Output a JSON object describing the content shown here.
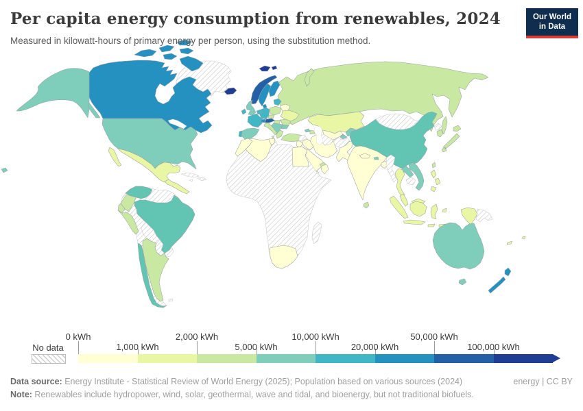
{
  "header": {
    "title": "Per capita energy consumption from renewables, 2024",
    "subtitle": "Measured in kilowatt-hours of primary energy per person, using the substitution method.",
    "logo_line1": "Our World",
    "logo_line2": "in Data",
    "logo_bg": "#0f2d4f",
    "logo_accent": "#d93c32"
  },
  "legend": {
    "no_data_label": "No data",
    "ticks": [
      {
        "label": "0 kWh",
        "row": "top"
      },
      {
        "label": "1,000 kWh",
        "row": "bottom"
      },
      {
        "label": "2,000 kWh",
        "row": "top"
      },
      {
        "label": "5,000 kWh",
        "row": "bottom"
      },
      {
        "label": "10,000 kWh",
        "row": "top"
      },
      {
        "label": "20,000 kWh",
        "row": "bottom"
      },
      {
        "label": "50,000 kWh",
        "row": "top"
      },
      {
        "label": "100,000 kWh",
        "row": "bottom"
      }
    ],
    "colors": [
      "#ffffd3",
      "#e9f6a4",
      "#c9e9a3",
      "#7fcdbb",
      "#41b6c4",
      "#2491c1",
      "#2360a5",
      "#203d94"
    ]
  },
  "footer": {
    "source_label": "Data source:",
    "source_text": " Energy Institute - Statistical Review of World Energy (2025); Population based on various sources (2024)",
    "license": "energy | CC BY",
    "note_label": "Note:",
    "note_text": " Renewables include hydropower, wind, solar, geothermal, wave and tidal, and bioenergy, but not traditional biofuels."
  },
  "map": {
    "no_data_key": "no-data",
    "country_colors": {
      "greenland": "no-data",
      "canada": "#2491c1",
      "canada-islands": "#2491c1",
      "alaska": "#7fcdbb",
      "alaska-panhandle": "#7fcdbb",
      "usa": "#7fcdbb",
      "hawaii": "#7fcdbb",
      "mexico": "#e9f6a4",
      "baja": "#e9f6a4",
      "central-america": "#e9f6a4",
      "cuba": "no-data",
      "hispaniola": "no-data",
      "jamaica": "no-data",
      "south-america-base": "no-data",
      "venezuela": "#62c4b2",
      "colombia": "#c9e9a3",
      "ecuador": "#c9e9a3",
      "peru": "#c9e9a3",
      "brazil": "#62c4b2",
      "bolivia": "no-data",
      "paraguay": "no-data",
      "uruguay": "no-data",
      "chile": "#62c4b2",
      "argentina": "#c9e9a3",
      "falklands": "no-data",
      "russia": "#c9e9a3",
      "novaya-zemlya": "#c9e9a3",
      "sakhalin": "#c9e9a3",
      "svalbard": "#203d94",
      "iceland": "#203d94",
      "norway": "#2360a5",
      "sweden": "#2491c1",
      "finland": "#2491c1",
      "denmark": "#2491c1",
      "baltics": "#41b6c4",
      "belarus": "#ffffd3",
      "poland": "#c9e9a3",
      "germany": "#41b6c4",
      "netherlands-belgium": "#41b6c4",
      "france": "#41b6c4",
      "uk": "#7fcdbb",
      "ireland": "#41b6c4",
      "switzerland": "#2491c1",
      "austria": "#2360a5",
      "czechia": "#c9e9a3",
      "hungary": "#c9e9a3",
      "ukraine": "#e9f6a4",
      "romania": "#c9e9a3",
      "balkans": "#7fcdbb",
      "bulgaria": "#7fcdbb",
      "greece": "#c9e9a3",
      "italy": "#c9e9a3",
      "sicily": "#c9e9a3",
      "spain": "#7fcdbb",
      "portugal": "#41b6c4",
      "turkey": "#c9e9a3",
      "georgia": "#7fcdbb",
      "azerbaijan": "#c9e9a3",
      "syria": "no-data",
      "iraq": "#ffffd3",
      "iran": "#ffffd3",
      "jordan-israel": "#ffffd3",
      "saudi-arabia": "#ffffd3",
      "yemen": "#ffffd3",
      "oman": "#ffffd3",
      "uae": "#c9e9a3",
      "kazakhstan": "#e9f6a4",
      "uzbekistan": "#ffffd3",
      "turkmenistan": "no-data",
      "kyrgyzstan": "#7fcdbb",
      "tajikistan": "#7fcdbb",
      "afghanistan": "no-data",
      "pakistan": "#ffffd3",
      "africa-base": "no-data",
      "morocco": "#ffffd3",
      "algeria": "#ffffd3",
      "tunisia": "#ffffd3",
      "egypt": "#ffffd3",
      "south-africa": "#ffffd3",
      "madagascar": "no-data",
      "india": "#ffffd3",
      "nepal": "#ffffd3",
      "bhutan": "#7fcdbb",
      "bangladesh": "#ffffd3",
      "sri-lanka": "#c9e9a3",
      "china": "#62c4b2",
      "mongolia": "no-data",
      "north-korea": "no-data",
      "south-korea": "#c9e9a3",
      "japan": "#c9e9a3",
      "taiwan": "#c9e9a3",
      "myanmar": "no-data",
      "thailand": "#e9f6a4",
      "laos": "#7fcdbb",
      "cambodia": "no-data",
      "vietnam": "#7fcdbb",
      "malaysia": "#e9f6a4",
      "borneo-malaysia": "#e9f6a4",
      "sumatra": "#e9f6a4",
      "java": "#e9f6a4",
      "borneo-indonesia": "#e9f6a4",
      "sulawesi": "#e9f6a4",
      "lesser-sunda": "#e9f6a4",
      "moluccas": "#e9f6a4",
      "west-papua": "#e9f6a4",
      "papua-new-guinea": "no-data",
      "philippines": "#e9f6a4",
      "timor": "#e9f6a4",
      "australia": "#7fcdbb",
      "tasmania": "#7fcdbb",
      "new-zealand": "#2491c1",
      "new-caledonia": "#e9f6a4",
      "fiji": "#e9f6a4"
    }
  }
}
